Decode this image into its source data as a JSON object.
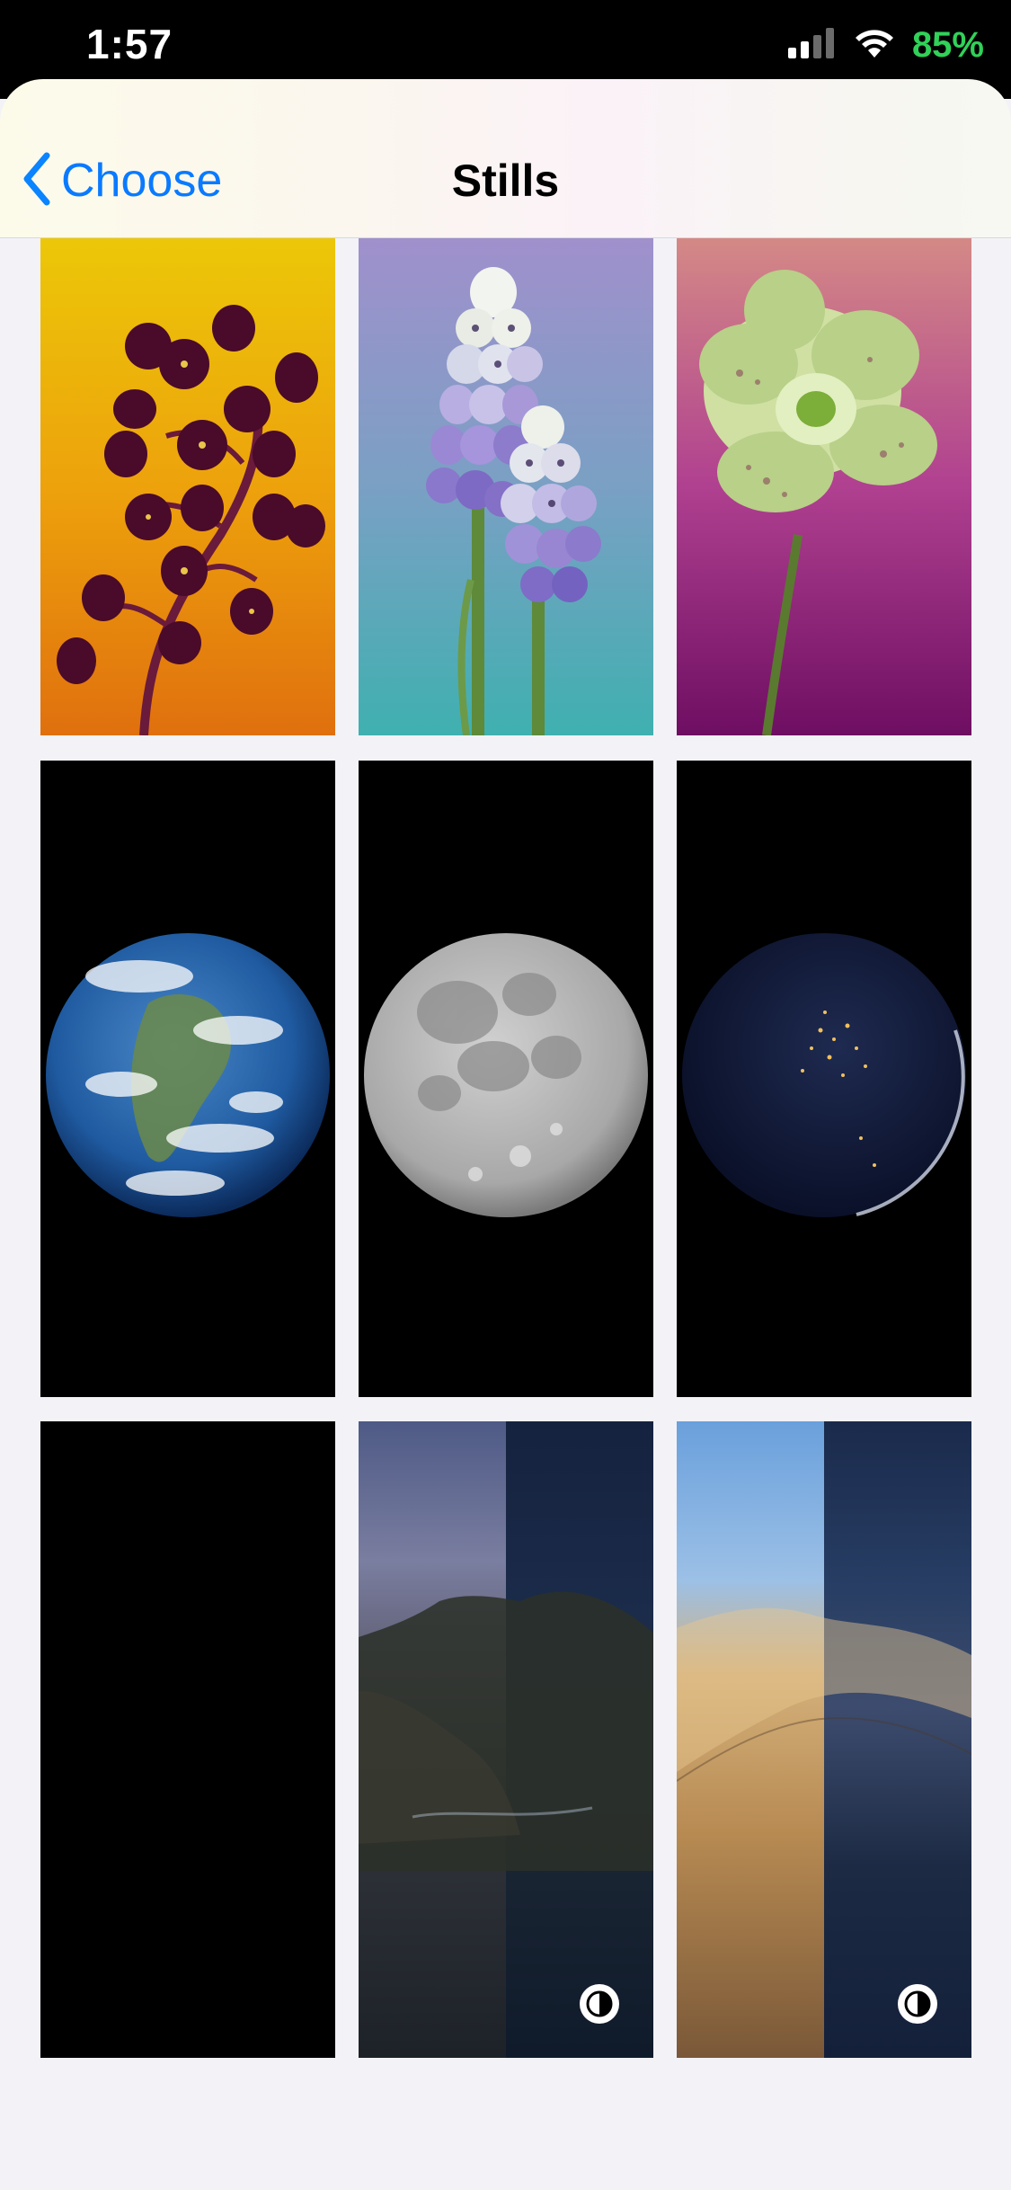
{
  "status_bar": {
    "time": "1:57",
    "battery": "85%",
    "battery_color": "#30d158",
    "icons": [
      "cellular-signal-icon",
      "wifi-icon"
    ]
  },
  "nav": {
    "back_label": "Choose",
    "title": "Stills",
    "accent_color": "#0a84ff"
  },
  "wallpapers": [
    {
      "name": "fritillaria-flower",
      "row": 1,
      "col": 1
    },
    {
      "name": "grape-hyacinth-flower",
      "row": 1,
      "col": 2
    },
    {
      "name": "hellebore-flower",
      "row": 1,
      "col": 3
    },
    {
      "name": "earth",
      "row": 2,
      "col": 1
    },
    {
      "name": "moon",
      "row": 2,
      "col": 2
    },
    {
      "name": "earth-night",
      "row": 2,
      "col": 3
    },
    {
      "name": "black",
      "row": 3,
      "col": 1
    },
    {
      "name": "catalina-light-dark",
      "row": 3,
      "col": 2,
      "appearance_toggle": true
    },
    {
      "name": "mojave-light-dark",
      "row": 3,
      "col": 3,
      "appearance_toggle": true
    }
  ]
}
